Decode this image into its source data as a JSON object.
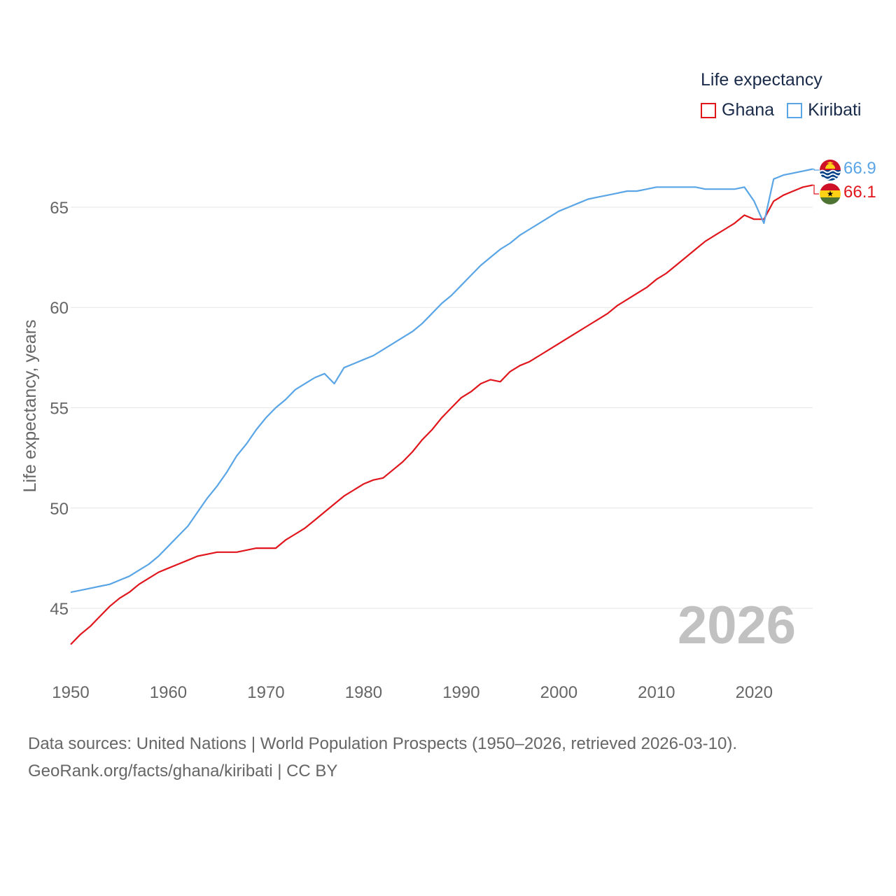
{
  "legend": {
    "title": "Life expectancy",
    "items": [
      {
        "name": "Ghana",
        "color": "#e0161c"
      },
      {
        "name": "Kiribati",
        "color": "#5aa5e6"
      }
    ]
  },
  "year_stamp": "2026",
  "footer": {
    "line1": "Data sources: United Nations | World Population Prospects (1950–2026, retrieved 2026-03-10).",
    "line2": "GeoRank.org/facts/ghana/kiribati | CC BY"
  },
  "end_labels": {
    "kiribati": "66.9",
    "ghana": "66.1"
  },
  "icons": {
    "kiribati": "kiribati-flag-icon",
    "ghana": "ghana-flag-icon"
  },
  "chart_data": {
    "type": "line",
    "title": "",
    "xlabel": "",
    "ylabel": "Life expectancy, years",
    "xlim": [
      1950,
      2026
    ],
    "ylim": [
      42,
      68
    ],
    "x_ticks": [
      "1950",
      "1960",
      "1970",
      "1980",
      "1990",
      "2000",
      "2010",
      "2020"
    ],
    "y_ticks": [
      "45",
      "50",
      "55",
      "60",
      "65"
    ],
    "grid": true,
    "legend_position": "top-right",
    "series": [
      {
        "name": "Ghana",
        "color": "#e0161c",
        "x": [
          1950,
          1951,
          1952,
          1953,
          1954,
          1955,
          1956,
          1957,
          1958,
          1959,
          1960,
          1961,
          1962,
          1963,
          1964,
          1965,
          1966,
          1967,
          1968,
          1969,
          1970,
          1971,
          1972,
          1973,
          1974,
          1975,
          1976,
          1977,
          1978,
          1979,
          1980,
          1981,
          1982,
          1983,
          1984,
          1985,
          1986,
          1987,
          1988,
          1989,
          1990,
          1991,
          1992,
          1993,
          1994,
          1995,
          1996,
          1997,
          1998,
          1999,
          2000,
          2001,
          2002,
          2003,
          2004,
          2005,
          2006,
          2007,
          2008,
          2009,
          2010,
          2011,
          2012,
          2013,
          2014,
          2015,
          2016,
          2017,
          2018,
          2019,
          2020,
          2021,
          2022,
          2023,
          2024,
          2025,
          2026
        ],
        "values": [
          43.2,
          43.7,
          44.1,
          44.6,
          45.1,
          45.5,
          45.8,
          46.2,
          46.5,
          46.8,
          47.0,
          47.2,
          47.4,
          47.6,
          47.7,
          47.8,
          47.8,
          47.8,
          47.9,
          48.0,
          48.0,
          48.0,
          48.4,
          48.7,
          49.0,
          49.4,
          49.8,
          50.2,
          50.6,
          50.9,
          51.2,
          51.4,
          51.5,
          51.9,
          52.3,
          52.8,
          53.4,
          53.9,
          54.5,
          55.0,
          55.5,
          55.8,
          56.2,
          56.4,
          56.3,
          56.8,
          57.1,
          57.3,
          57.6,
          57.9,
          58.2,
          58.5,
          58.8,
          59.1,
          59.4,
          59.7,
          60.1,
          60.4,
          60.7,
          61.0,
          61.4,
          61.7,
          62.1,
          62.5,
          62.9,
          63.3,
          63.6,
          63.9,
          64.2,
          64.6,
          64.4,
          64.4,
          65.3,
          65.6,
          65.8,
          66.0,
          66.1
        ]
      },
      {
        "name": "Kiribati",
        "color": "#5aa5e6",
        "x": [
          1950,
          1951,
          1952,
          1953,
          1954,
          1955,
          1956,
          1957,
          1958,
          1959,
          1960,
          1961,
          1962,
          1963,
          1964,
          1965,
          1966,
          1967,
          1968,
          1969,
          1970,
          1971,
          1972,
          1973,
          1974,
          1975,
          1976,
          1977,
          1978,
          1979,
          1980,
          1981,
          1982,
          1983,
          1984,
          1985,
          1986,
          1987,
          1988,
          1989,
          1990,
          1991,
          1992,
          1993,
          1994,
          1995,
          1996,
          1997,
          1998,
          1999,
          2000,
          2001,
          2002,
          2003,
          2004,
          2005,
          2006,
          2007,
          2008,
          2009,
          2010,
          2011,
          2012,
          2013,
          2014,
          2015,
          2016,
          2017,
          2018,
          2019,
          2020,
          2021,
          2022,
          2023,
          2024,
          2025,
          2026
        ],
        "values": [
          45.8,
          45.9,
          46.0,
          46.1,
          46.2,
          46.4,
          46.6,
          46.9,
          47.2,
          47.6,
          48.1,
          48.6,
          49.1,
          49.8,
          50.5,
          51.1,
          51.8,
          52.6,
          53.2,
          53.9,
          54.5,
          55.0,
          55.4,
          55.9,
          56.2,
          56.5,
          56.7,
          56.2,
          57.0,
          57.2,
          57.4,
          57.6,
          57.9,
          58.2,
          58.5,
          58.8,
          59.2,
          59.7,
          60.2,
          60.6,
          61.1,
          61.6,
          62.1,
          62.5,
          62.9,
          63.2,
          63.6,
          63.9,
          64.2,
          64.5,
          64.8,
          65.0,
          65.2,
          65.4,
          65.5,
          65.6,
          65.7,
          65.8,
          65.8,
          65.9,
          66.0,
          66.0,
          66.0,
          66.0,
          66.0,
          65.9,
          65.9,
          65.9,
          65.9,
          66.0,
          65.3,
          64.2,
          66.4,
          66.6,
          66.7,
          66.8,
          66.9
        ]
      }
    ]
  }
}
